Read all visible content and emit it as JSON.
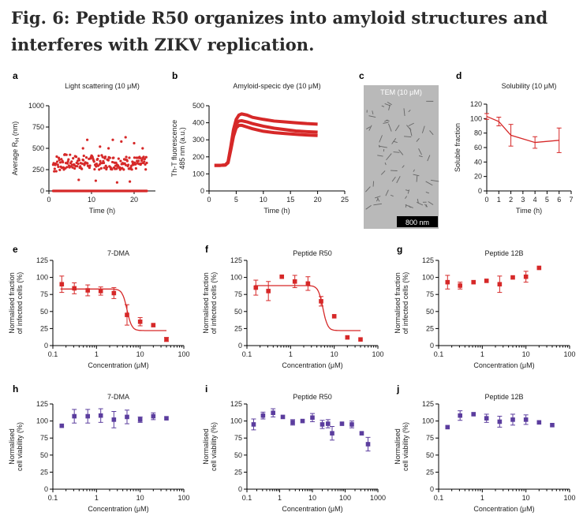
{
  "figure": {
    "title": "Fig. 6: Peptide R50 organizes into amyloid structures and interferes with ZIKV replication."
  },
  "colors": {
    "red": "#d62828",
    "purple": "#5b3d9e",
    "axis": "#000000"
  },
  "chart_data": [
    {
      "id": "a",
      "type": "scatter",
      "title": "Light scattering (10 μM)",
      "xlabel": "Time (h)",
      "ylabel_line1": "Average R",
      "ylabel_sub": "H",
      "ylabel_unit": " (nm)",
      "xlim": [
        0,
        25
      ],
      "ylim": [
        0,
        1000
      ],
      "xticks": [
        0,
        10,
        20
      ],
      "yticks": [
        0,
        250,
        500,
        750,
        1000
      ],
      "series": [
        {
          "band_low": [
            {
              "t": 1,
              "v": 200
            },
            {
              "t": 3,
              "v": 240
            },
            {
              "t": 6,
              "v": 250
            },
            {
              "t": 12,
              "v": 250
            },
            {
              "t": 18,
              "v": 250
            },
            {
              "t": 23,
              "v": 240
            }
          ],
          "band_high": [
            {
              "t": 1,
              "v": 420
            },
            {
              "t": 3,
              "v": 440
            },
            {
              "t": 6,
              "v": 420
            },
            {
              "t": 12,
              "v": 420
            },
            {
              "t": 18,
              "v": 410
            },
            {
              "t": 23,
              "v": 400
            }
          ],
          "baseline": 0,
          "outliers": [
            [
              6,
              300
            ],
            [
              8,
              500
            ],
            [
              9,
              600
            ],
            [
              12,
              520
            ],
            [
              14,
              500
            ],
            [
              15,
              600
            ],
            [
              17,
              580
            ],
            [
              18,
              630
            ],
            [
              20,
              560
            ],
            [
              22,
              500
            ],
            [
              7,
              130
            ],
            [
              11,
              120
            ],
            [
              16,
              100
            ],
            [
              19,
              110
            ]
          ]
        }
      ]
    },
    {
      "id": "b",
      "type": "line",
      "title": "Amyloid-specic dye (10 μM)",
      "xlabel": "Time (h)",
      "ylabel_line1": "Th-T fluorescence",
      "ylabel_line2": "485 nm (a.u.)",
      "xlim": [
        0,
        25
      ],
      "ylim": [
        0,
        500
      ],
      "xticks": [
        0,
        5,
        10,
        15,
        20,
        25
      ],
      "yticks": [
        0,
        100,
        200,
        300,
        400,
        500
      ],
      "series": [
        {
          "x": [
            1,
            2,
            3,
            3.5,
            4,
            4.5,
            5,
            5.5,
            6,
            7,
            8,
            10,
            12,
            14,
            16,
            18,
            20
          ],
          "y": [
            150,
            150,
            152,
            170,
            260,
            360,
            420,
            445,
            452,
            445,
            432,
            420,
            410,
            405,
            400,
            395,
            392
          ]
        },
        {
          "x": [
            1,
            2,
            3,
            3.5,
            4,
            4.5,
            5,
            5.5,
            6,
            7,
            8,
            10,
            12,
            14,
            16,
            18,
            20
          ],
          "y": [
            150,
            150,
            152,
            168,
            250,
            340,
            395,
            410,
            412,
            405,
            395,
            380,
            368,
            360,
            352,
            348,
            345
          ]
        },
        {
          "x": [
            1,
            2,
            3,
            3.5,
            4,
            4.5,
            5,
            5.5,
            6,
            7,
            8,
            10,
            12,
            14,
            16,
            18,
            20
          ],
          "y": [
            150,
            150,
            152,
            165,
            240,
            320,
            370,
            385,
            385,
            375,
            365,
            350,
            342,
            337,
            332,
            328,
            325
          ]
        }
      ]
    },
    {
      "id": "c",
      "type": "image",
      "title": "TEM (10 μM)",
      "scalebar": "800 nm"
    },
    {
      "id": "d",
      "type": "line",
      "title": "Solubility (10 μM)",
      "xlabel": "Time (h)",
      "ylabel_line1": "Soluble fraction",
      "xlim": [
        0,
        7
      ],
      "ylim": [
        0,
        120
      ],
      "xticks": [
        0,
        1,
        2,
        3,
        4,
        5,
        6,
        7
      ],
      "yticks": [
        0,
        20,
        40,
        60,
        80,
        100,
        120
      ],
      "series": [
        {
          "x": [
            0,
            1,
            2,
            4,
            6
          ],
          "y": [
            103,
            96,
            77,
            67,
            70
          ],
          "err": [
            4,
            6,
            15,
            8,
            17
          ]
        }
      ]
    },
    {
      "id": "e",
      "type": "dose",
      "title": "7-DMA",
      "xlabel": "Concentration (μM)",
      "ylabel_line1": "Normalised fraction",
      "ylabel_line2": "of infected cells (%)",
      "xlog": [
        0.1,
        100
      ],
      "ylim": [
        0,
        125
      ],
      "yticks": [
        0,
        25,
        50,
        75,
        100,
        125
      ],
      "points": {
        "x": [
          0.16,
          0.31,
          0.63,
          1.25,
          2.5,
          5,
          10,
          20,
          40
        ],
        "y": [
          90,
          84,
          81,
          80,
          77,
          45,
          35,
          30,
          9
        ],
        "err": [
          12,
          8,
          8,
          6,
          8,
          15,
          6,
          0,
          3
        ]
      },
      "fit": {
        "top": 83,
        "bottom": 22,
        "ec50": 5.0,
        "hill": 8
      }
    },
    {
      "id": "f",
      "type": "dose",
      "title": "Peptide R50",
      "xlabel": "Concentration (μM)",
      "ylabel_line1": "Normalised fraction",
      "ylabel_line2": "of infected cells (%)",
      "xlog": [
        0.1,
        100
      ],
      "ylim": [
        0,
        125
      ],
      "yticks": [
        0,
        25,
        50,
        75,
        100,
        125
      ],
      "points": {
        "x": [
          0.16,
          0.31,
          0.63,
          1.25,
          2.5,
          5,
          10,
          20,
          40
        ],
        "y": [
          85,
          80,
          101,
          94,
          91,
          65,
          43,
          12,
          9
        ],
        "err": [
          11,
          14,
          0,
          9,
          10,
          7,
          0,
          0,
          0
        ]
      },
      "fit": {
        "top": 88,
        "bottom": 22,
        "ec50": 5.5,
        "hill": 8
      }
    },
    {
      "id": "g",
      "type": "dose",
      "title": "Peptide 12B",
      "xlabel": "Concentration (μM)",
      "ylabel_line1": "Normalised fraction",
      "ylabel_line2": "of infected cells (%)",
      "xlog": [
        0.1,
        100
      ],
      "ylim": [
        0,
        125
      ],
      "yticks": [
        0,
        25,
        50,
        75,
        100,
        125
      ],
      "points": {
        "x": [
          0.16,
          0.31,
          0.63,
          1.25,
          2.5,
          5,
          10,
          20
        ],
        "y": [
          93,
          88,
          93,
          95,
          90,
          100,
          101,
          114
        ],
        "err": [
          10,
          5,
          0,
          0,
          12,
          0,
          8,
          0
        ]
      }
    },
    {
      "id": "h",
      "type": "dose",
      "title": "7-DMA",
      "xlabel": "Concentration (μM)",
      "ylabel_line1": "Normalised",
      "ylabel_line2": "cell viability (%)",
      "xlog": [
        0.1,
        100
      ],
      "ylim": [
        0,
        125
      ],
      "yticks": [
        0,
        25,
        50,
        75,
        100,
        125
      ],
      "points": {
        "x": [
          0.16,
          0.31,
          0.63,
          1.25,
          2.5,
          5,
          10,
          20,
          40
        ],
        "y": [
          93,
          107,
          107,
          108,
          102,
          106,
          102,
          107,
          104
        ],
        "err": [
          0,
          10,
          10,
          10,
          12,
          10,
          4,
          5,
          0
        ]
      }
    },
    {
      "id": "i",
      "type": "dose",
      "title": "Peptide R50",
      "xlabel": "Concentration (μM)",
      "ylabel_line1": "Normalised",
      "ylabel_line2": "cell viability (%)",
      "xlog": [
        0.1,
        1000
      ],
      "ylim": [
        0,
        125
      ],
      "yticks": [
        0,
        25,
        50,
        75,
        100,
        125
      ],
      "points": {
        "x": [
          0.16,
          0.31,
          0.63,
          1.25,
          2.5,
          5,
          10,
          20,
          30,
          40,
          80,
          160,
          320,
          500
        ],
        "y": [
          95,
          108,
          112,
          106,
          98,
          100,
          105,
          95,
          96,
          82,
          96,
          95,
          82,
          66
        ],
        "err": [
          8,
          5,
          6,
          0,
          4,
          0,
          6,
          6,
          6,
          10,
          0,
          5,
          0,
          10
        ]
      }
    },
    {
      "id": "j",
      "type": "dose",
      "title": "Peptide 12B",
      "xlabel": "Concentration (μM)",
      "ylabel_line1": "Normalised",
      "ylabel_line2": "cell viability (%)",
      "xlog": [
        0.1,
        100
      ],
      "ylim": [
        0,
        125
      ],
      "yticks": [
        0,
        25,
        50,
        75,
        100,
        125
      ],
      "points": {
        "x": [
          0.16,
          0.31,
          0.63,
          1.25,
          2.5,
          5,
          10,
          20,
          40
        ],
        "y": [
          91,
          108,
          110,
          104,
          99,
          102,
          102,
          98,
          94
        ],
        "err": [
          0,
          7,
          0,
          6,
          8,
          8,
          7,
          0,
          0
        ]
      }
    }
  ]
}
